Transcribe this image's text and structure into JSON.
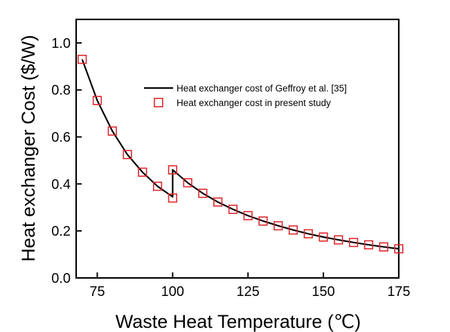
{
  "chart_data": {
    "type": "line",
    "title": "",
    "xlabel": "Waste Heat Temperature (℃)",
    "ylabel": "Heat exchanger Cost ($/W)",
    "xlim": [
      68,
      175
    ],
    "ylim": [
      0.0,
      1.1
    ],
    "x_ticks": [
      75,
      100,
      125,
      150,
      175
    ],
    "y_ticks": [
      0.0,
      0.2,
      0.4,
      0.6,
      0.8,
      1.0
    ],
    "x_tick_labels": [
      "75",
      "100",
      "125",
      "150",
      "175"
    ],
    "y_tick_labels": [
      "0.0",
      "0.2",
      "0.4",
      "0.6",
      "0.8",
      "1.0"
    ],
    "grid": false,
    "legend_position": "upper-right",
    "series": [
      {
        "name": "Heat exchanger cost of Geffroy et al. [35]",
        "style": "line",
        "color": "#000000",
        "x": [
          70,
          75,
          80,
          85,
          90,
          95,
          100,
          100,
          105,
          110,
          115,
          120,
          125,
          130,
          135,
          140,
          145,
          150,
          155,
          160,
          165,
          170,
          175
        ],
        "y": [
          0.93,
          0.755,
          0.625,
          0.525,
          0.45,
          0.39,
          0.345,
          0.46,
          0.405,
          0.36,
          0.323,
          0.292,
          0.265,
          0.242,
          0.222,
          0.204,
          0.188,
          0.174,
          0.162,
          0.151,
          0.141,
          0.132,
          0.124
        ]
      },
      {
        "name": "Heat exchanger cost in present study",
        "style": "square-marker",
        "color": "#e0242a",
        "x": [
          70,
          75,
          80,
          85,
          90,
          95,
          100,
          100,
          105,
          110,
          115,
          120,
          125,
          130,
          135,
          140,
          145,
          150,
          155,
          160,
          165,
          170,
          175
        ],
        "y": [
          0.93,
          0.755,
          0.625,
          0.525,
          0.45,
          0.39,
          0.34,
          0.46,
          0.405,
          0.36,
          0.323,
          0.292,
          0.265,
          0.242,
          0.222,
          0.204,
          0.188,
          0.174,
          0.162,
          0.151,
          0.141,
          0.132,
          0.124
        ]
      }
    ]
  }
}
